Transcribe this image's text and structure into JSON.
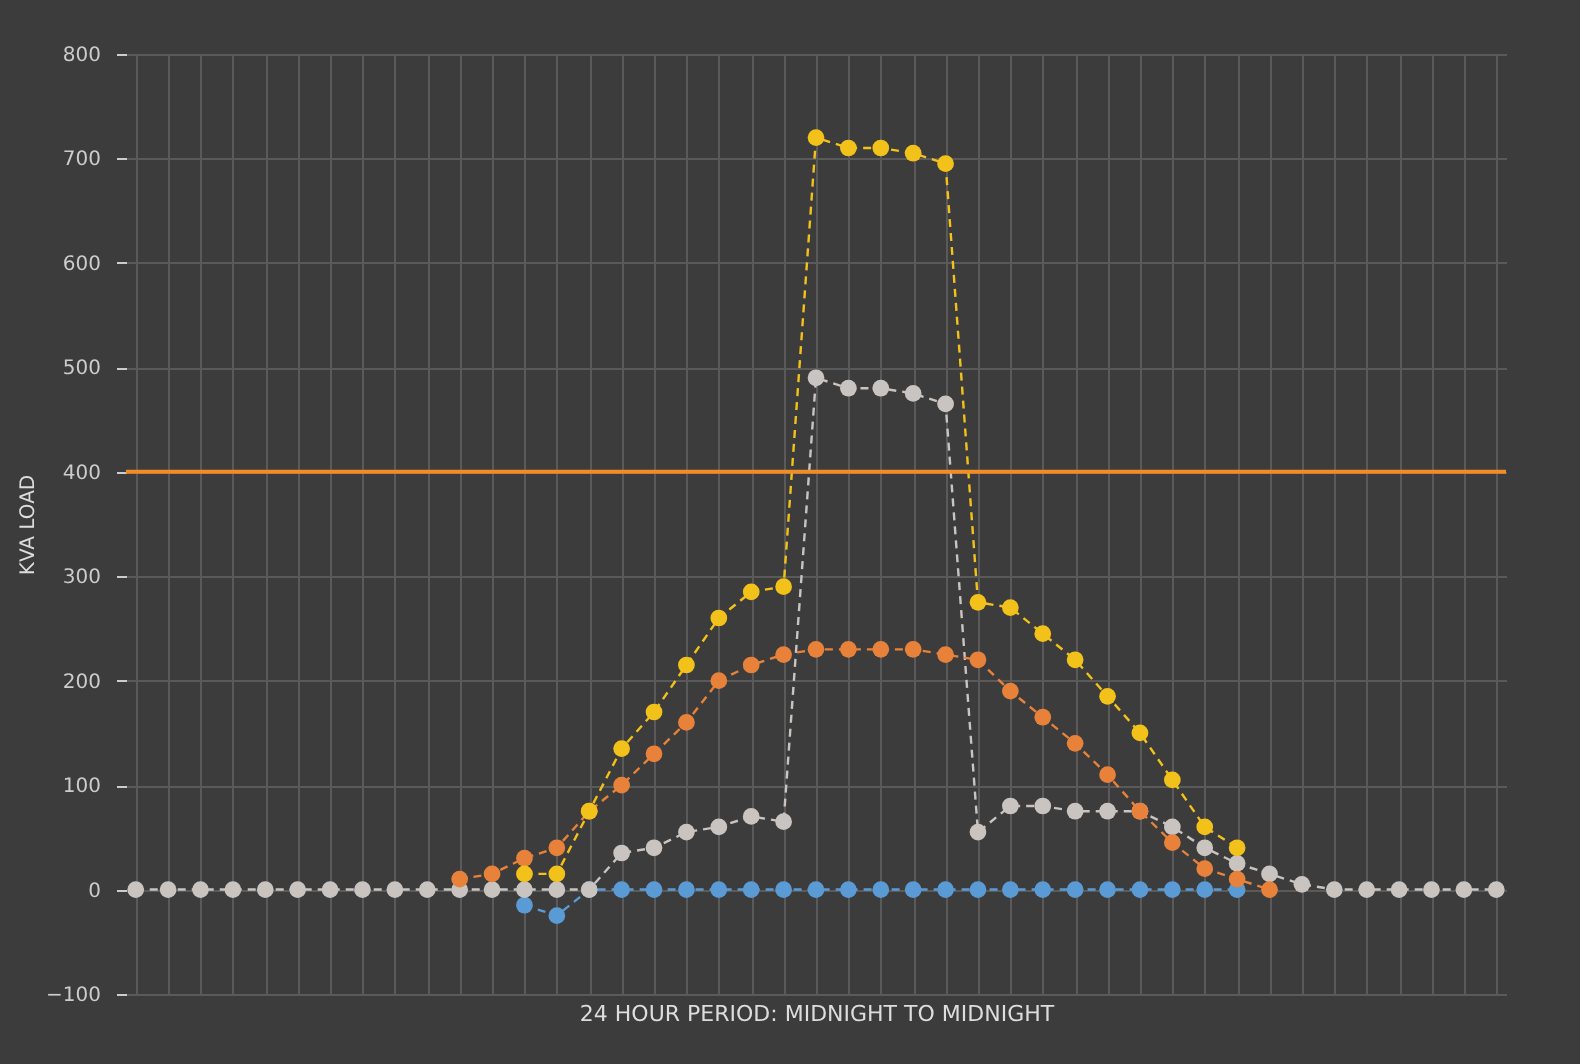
{
  "chart_data": {
    "type": "line",
    "xlabel": "24 HOUR PERIOD: MIDNIGHT TO MIDNIGHT",
    "ylabel": "KVA LOAD",
    "categories": [
      null,
      null,
      null,
      null,
      null,
      null,
      null,
      null,
      null,
      null,
      null,
      null,
      null,
      null,
      null,
      null,
      null,
      null,
      null,
      null,
      null,
      null,
      null,
      null,
      null,
      null,
      null,
      null,
      null,
      null,
      null,
      null,
      null,
      null,
      null,
      null,
      null,
      null,
      null,
      null,
      null,
      null,
      null
    ],
    "series": [
      {
        "color": "#5b9bd5",
        "values": [
          null,
          null,
          null,
          null,
          null,
          null,
          null,
          null,
          null,
          null,
          null,
          null,
          -15,
          -25,
          0,
          0,
          0,
          0,
          0,
          0,
          0,
          0,
          0,
          0,
          0,
          0,
          0,
          0,
          0,
          0,
          0,
          0,
          0,
          0,
          0,
          null,
          null,
          null,
          null,
          null,
          null,
          null,
          null
        ]
      },
      {
        "color": "#c9c4c0",
        "values": [
          0,
          0,
          0,
          0,
          0,
          0,
          0,
          0,
          0,
          0,
          0,
          0,
          0,
          0,
          0,
          35,
          40,
          55,
          60,
          70,
          65,
          490,
          480,
          480,
          475,
          465,
          55,
          80,
          80,
          75,
          75,
          75,
          60,
          40,
          25,
          15,
          5,
          0,
          0,
          0,
          0,
          0,
          0
        ]
      },
      {
        "color": "#e8823a",
        "values": [
          null,
          null,
          null,
          null,
          null,
          null,
          null,
          null,
          null,
          null,
          10,
          15,
          30,
          40,
          75,
          100,
          130,
          160,
          200,
          215,
          225,
          230,
          230,
          230,
          230,
          225,
          220,
          190,
          165,
          140,
          110,
          75,
          45,
          20,
          10,
          0,
          null,
          null,
          null,
          null,
          null,
          null,
          null
        ]
      },
      {
        "color": "#f2c21b",
        "values": [
          null,
          null,
          null,
          null,
          null,
          null,
          null,
          null,
          null,
          null,
          null,
          null,
          15,
          15,
          75,
          135,
          170,
          215,
          260,
          285,
          290,
          720,
          710,
          710,
          705,
          695,
          275,
          270,
          245,
          220,
          185,
          150,
          105,
          60,
          40,
          null,
          null,
          null,
          null,
          null,
          null,
          null,
          null
        ]
      }
    ],
    "ylim": [
      -100,
      800
    ],
    "yticks": [
      -100,
      0,
      100,
      200,
      300,
      400,
      500,
      600,
      700,
      800
    ],
    "ref_lines": [
      {
        "axis": "y",
        "value": 400,
        "color": "#f28c28"
      }
    ],
    "grid": true,
    "legend": false,
    "tick_labels": "y",
    "marker": "circle",
    "line_style": "dashed"
  }
}
